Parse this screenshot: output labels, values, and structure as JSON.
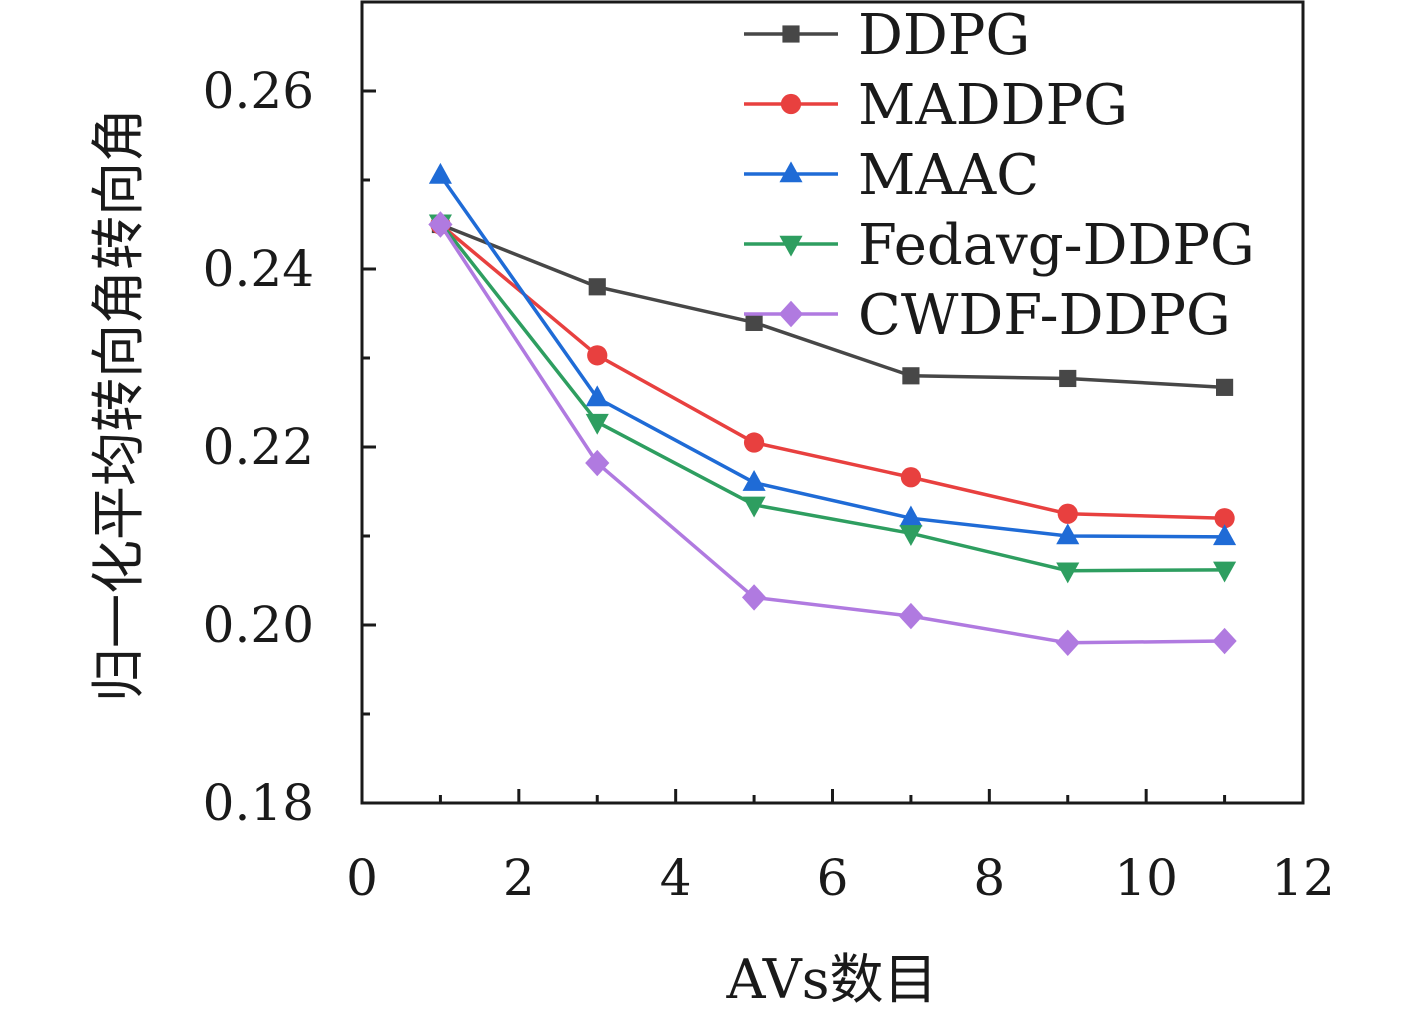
{
  "chart_data": {
    "type": "line",
    "xlabel": "AVs数目",
    "ylabel": "归一化平均转向角转向角",
    "xlim": [
      0,
      12
    ],
    "ylim": [
      0.18,
      0.27
    ],
    "xticks": [
      0,
      2,
      4,
      6,
      8,
      10,
      12
    ],
    "xtick_labels": [
      "0",
      "2",
      "4",
      "6",
      "8",
      "10",
      "12"
    ],
    "yticks": [
      0.18,
      0.2,
      0.22,
      0.24,
      0.26
    ],
    "ytick_labels": [
      "0.18",
      "0.20",
      "0.22",
      "0.24",
      "0.26"
    ],
    "x": [
      1,
      3,
      5,
      7,
      9,
      11
    ],
    "legend_position": "top-right",
    "grid": false,
    "series": [
      {
        "name": "DDPG",
        "color": "#474747",
        "marker": "square",
        "values": [
          0.245,
          0.238,
          0.234,
          0.228,
          0.2277,
          0.2267
        ]
      },
      {
        "name": "MADDPG",
        "color": "#e8403f",
        "marker": "circle",
        "values": [
          0.245,
          0.2303,
          0.2205,
          0.2166,
          0.2125,
          0.212
        ]
      },
      {
        "name": "MAAC",
        "color": "#1f6bd6",
        "marker": "triangle-up",
        "values": [
          0.2505,
          0.2255,
          0.216,
          0.212,
          0.21,
          0.2099
        ]
      },
      {
        "name": "Fedavg-DDPG",
        "color": "#2e9e60",
        "marker": "triangle-down",
        "values": [
          0.2452,
          0.2228,
          0.2135,
          0.2103,
          0.2061,
          0.2062
        ]
      },
      {
        "name": "CWDF-DDPG",
        "color": "#b07ae0",
        "marker": "diamond",
        "values": [
          0.245,
          0.2182,
          0.2031,
          0.201,
          0.198,
          0.1982
        ]
      }
    ]
  }
}
